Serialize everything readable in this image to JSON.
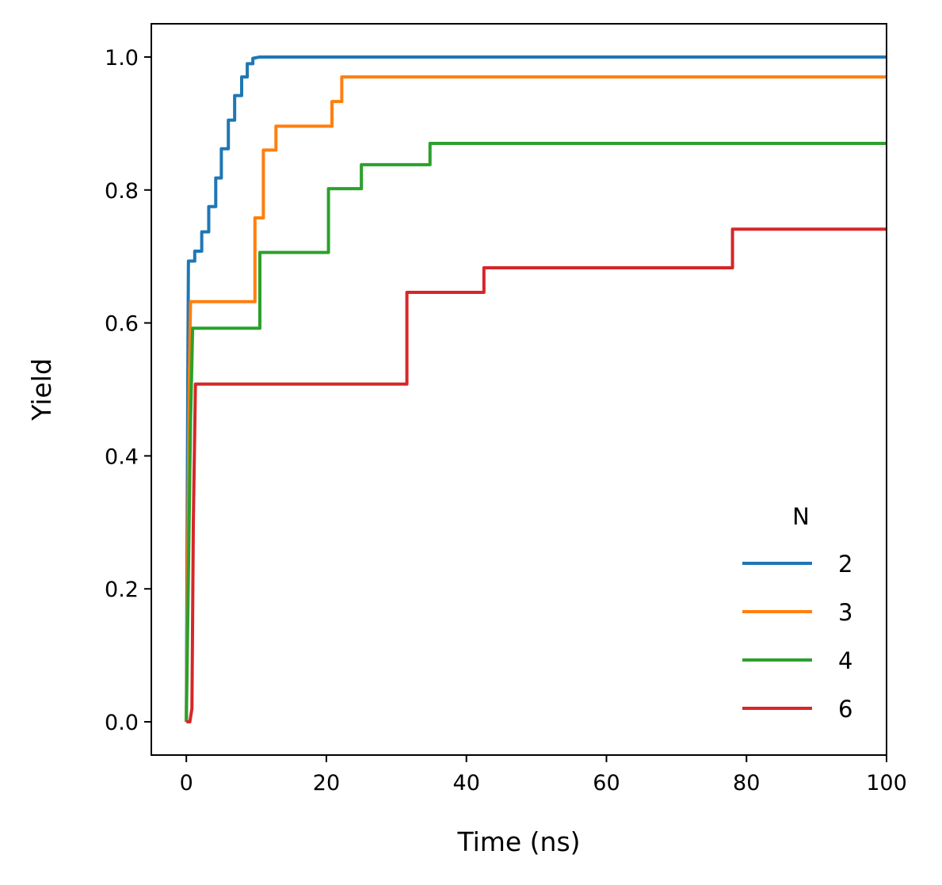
{
  "chart_data": {
    "type": "line",
    "title": "",
    "xlabel": "Time (ns)",
    "ylabel": "Yield",
    "xlim": [
      -5,
      100
    ],
    "ylim": [
      -0.05,
      1.05
    ],
    "xticks": [
      0,
      20,
      40,
      60,
      80,
      100
    ],
    "yticks": [
      0.0,
      0.2,
      0.4,
      0.6,
      0.8,
      1.0
    ],
    "xtick_labels": [
      "0",
      "20",
      "40",
      "60",
      "80",
      "100"
    ],
    "ytick_labels": [
      "0.0",
      "0.2",
      "0.4",
      "0.6",
      "0.8",
      "1.0"
    ],
    "grid": false,
    "legend": {
      "title": "N",
      "position": "lower-right"
    },
    "series": [
      {
        "name": "2",
        "color": "#1f77b4",
        "points": [
          [
            0,
            0
          ],
          [
            0.2,
            0.5
          ],
          [
            0.3,
            0.693
          ],
          [
            1.2,
            0.693
          ],
          [
            1.2,
            0.708
          ],
          [
            2.2,
            0.708
          ],
          [
            2.2,
            0.737
          ],
          [
            3.2,
            0.737
          ],
          [
            3.2,
            0.775
          ],
          [
            4.2,
            0.775
          ],
          [
            4.2,
            0.818
          ],
          [
            5.0,
            0.818
          ],
          [
            5.0,
            0.862
          ],
          [
            6.0,
            0.862
          ],
          [
            6.0,
            0.905
          ],
          [
            6.9,
            0.905
          ],
          [
            6.9,
            0.942
          ],
          [
            7.9,
            0.942
          ],
          [
            7.9,
            0.97
          ],
          [
            8.7,
            0.97
          ],
          [
            8.7,
            0.99
          ],
          [
            9.5,
            0.99
          ],
          [
            9.5,
            0.998
          ],
          [
            10.5,
            1.0
          ],
          [
            100,
            1.0
          ]
        ]
      },
      {
        "name": "3",
        "color": "#ff7f0e",
        "points": [
          [
            0,
            0
          ],
          [
            0.4,
            0.5
          ],
          [
            0.6,
            0.632
          ],
          [
            9.8,
            0.632
          ],
          [
            9.8,
            0.758
          ],
          [
            11.0,
            0.758
          ],
          [
            11.0,
            0.86
          ],
          [
            12.8,
            0.86
          ],
          [
            12.8,
            0.896
          ],
          [
            20.8,
            0.896
          ],
          [
            20.8,
            0.933
          ],
          [
            22.2,
            0.933
          ],
          [
            22.2,
            0.97
          ],
          [
            100,
            0.97
          ]
        ]
      },
      {
        "name": "4",
        "color": "#2ca02c",
        "points": [
          [
            0,
            0
          ],
          [
            0.6,
            0.45
          ],
          [
            0.9,
            0.592
          ],
          [
            10.5,
            0.592
          ],
          [
            10.5,
            0.706
          ],
          [
            20.3,
            0.706
          ],
          [
            20.3,
            0.802
          ],
          [
            25.0,
            0.802
          ],
          [
            25.0,
            0.838
          ],
          [
            34.8,
            0.838
          ],
          [
            34.8,
            0.87
          ],
          [
            100,
            0.87
          ]
        ]
      },
      {
        "name": "6",
        "color": "#d62728",
        "points": [
          [
            0,
            0
          ],
          [
            0.5,
            0
          ],
          [
            0.8,
            0.02
          ],
          [
            1.0,
            0.3
          ],
          [
            1.3,
            0.508
          ],
          [
            31.5,
            0.508
          ],
          [
            31.5,
            0.646
          ],
          [
            42.5,
            0.646
          ],
          [
            42.5,
            0.683
          ],
          [
            78.0,
            0.683
          ],
          [
            78.0,
            0.741
          ],
          [
            100,
            0.741
          ]
        ]
      }
    ]
  }
}
